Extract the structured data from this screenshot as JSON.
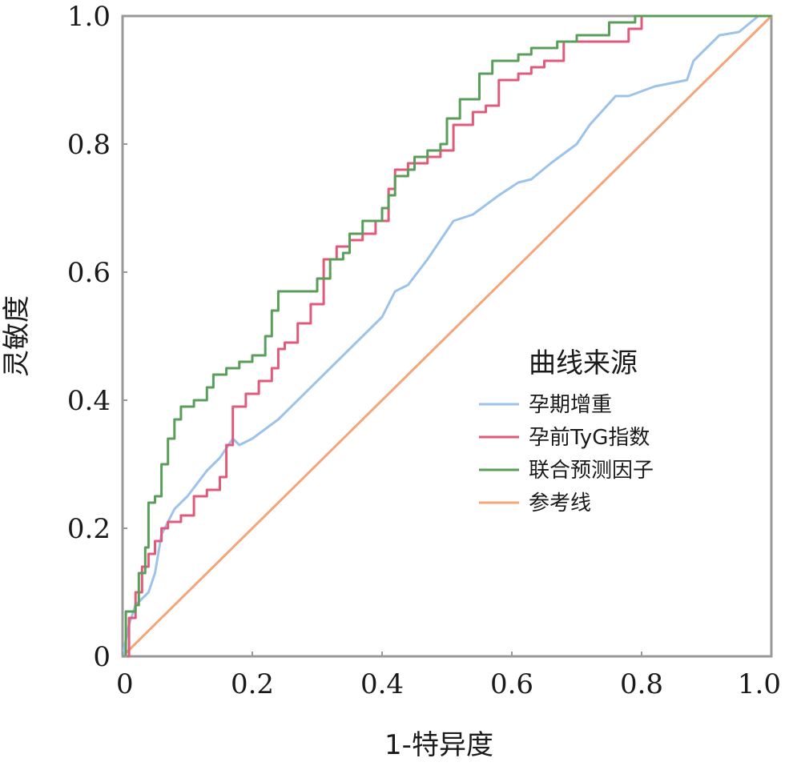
{
  "chart_data": {
    "type": "line",
    "title": "",
    "xlabel": "1-特异度",
    "ylabel": "灵敏度",
    "xlim": [
      0,
      1
    ],
    "ylim": [
      0,
      1
    ],
    "x_ticks": [
      "0",
      "0.2",
      "0.4",
      "0.6",
      "0.8",
      "1.0"
    ],
    "y_ticks": [
      "0",
      "0.2",
      "0.4",
      "0.6",
      "0.8",
      "1.0"
    ],
    "grid": false,
    "legend": {
      "title": "曲线来源",
      "placement": "right-center"
    },
    "series": [
      {
        "name": "孕期增重",
        "color": "#9dc3ea",
        "step": false,
        "points": [
          [
            0,
            0
          ],
          [
            0.01,
            0.05
          ],
          [
            0.02,
            0.08
          ],
          [
            0.03,
            0.09
          ],
          [
            0.04,
            0.1
          ],
          [
            0.05,
            0.13
          ],
          [
            0.06,
            0.19
          ],
          [
            0.08,
            0.23
          ],
          [
            0.1,
            0.25
          ],
          [
            0.13,
            0.29
          ],
          [
            0.15,
            0.31
          ],
          [
            0.17,
            0.34
          ],
          [
            0.18,
            0.33
          ],
          [
            0.2,
            0.34
          ],
          [
            0.24,
            0.37
          ],
          [
            0.28,
            0.41
          ],
          [
            0.32,
            0.45
          ],
          [
            0.35,
            0.48
          ],
          [
            0.4,
            0.53
          ],
          [
            0.42,
            0.57
          ],
          [
            0.44,
            0.58
          ],
          [
            0.47,
            0.62
          ],
          [
            0.51,
            0.68
          ],
          [
            0.54,
            0.69
          ],
          [
            0.58,
            0.72
          ],
          [
            0.61,
            0.74
          ],
          [
            0.63,
            0.745
          ],
          [
            0.66,
            0.77
          ],
          [
            0.7,
            0.8
          ],
          [
            0.72,
            0.83
          ],
          [
            0.76,
            0.875
          ],
          [
            0.78,
            0.875
          ],
          [
            0.82,
            0.89
          ],
          [
            0.87,
            0.9
          ],
          [
            0.88,
            0.93
          ],
          [
            0.9,
            0.95
          ],
          [
            0.92,
            0.97
          ],
          [
            0.95,
            0.975
          ],
          [
            0.98,
            1.0
          ],
          [
            1.0,
            1.0
          ]
        ]
      },
      {
        "name": "孕前TyG指数",
        "color": "#e05a7a",
        "step": true,
        "points": [
          [
            0,
            0
          ],
          [
            0.01,
            0.06
          ],
          [
            0.02,
            0.1
          ],
          [
            0.03,
            0.14
          ],
          [
            0.04,
            0.16
          ],
          [
            0.05,
            0.18
          ],
          [
            0.06,
            0.2
          ],
          [
            0.07,
            0.21
          ],
          [
            0.09,
            0.22
          ],
          [
            0.11,
            0.25
          ],
          [
            0.13,
            0.26
          ],
          [
            0.15,
            0.28
          ],
          [
            0.16,
            0.33
          ],
          [
            0.17,
            0.39
          ],
          [
            0.19,
            0.41
          ],
          [
            0.21,
            0.43
          ],
          [
            0.23,
            0.45
          ],
          [
            0.24,
            0.48
          ],
          [
            0.25,
            0.49
          ],
          [
            0.27,
            0.52
          ],
          [
            0.29,
            0.55
          ],
          [
            0.31,
            0.62
          ],
          [
            0.33,
            0.64
          ],
          [
            0.35,
            0.65
          ],
          [
            0.37,
            0.66
          ],
          [
            0.39,
            0.68
          ],
          [
            0.41,
            0.73
          ],
          [
            0.42,
            0.76
          ],
          [
            0.44,
            0.77
          ],
          [
            0.47,
            0.78
          ],
          [
            0.49,
            0.79
          ],
          [
            0.51,
            0.83
          ],
          [
            0.54,
            0.85
          ],
          [
            0.56,
            0.86
          ],
          [
            0.58,
            0.9
          ],
          [
            0.61,
            0.91
          ],
          [
            0.63,
            0.92
          ],
          [
            0.65,
            0.93
          ],
          [
            0.68,
            0.96
          ],
          [
            0.74,
            0.96
          ],
          [
            0.78,
            0.98
          ],
          [
            0.8,
            1.0
          ],
          [
            0.85,
            1.0
          ],
          [
            1.0,
            1.0
          ]
        ]
      },
      {
        "name": "联合预测因子",
        "color": "#5a9e5a",
        "step": true,
        "points": [
          [
            0,
            0
          ],
          [
            0.005,
            0.07
          ],
          [
            0.02,
            0.08
          ],
          [
            0.025,
            0.13
          ],
          [
            0.035,
            0.17
          ],
          [
            0.04,
            0.24
          ],
          [
            0.05,
            0.25
          ],
          [
            0.06,
            0.3
          ],
          [
            0.07,
            0.34
          ],
          [
            0.08,
            0.37
          ],
          [
            0.09,
            0.39
          ],
          [
            0.11,
            0.4
          ],
          [
            0.13,
            0.42
          ],
          [
            0.14,
            0.44
          ],
          [
            0.16,
            0.45
          ],
          [
            0.18,
            0.46
          ],
          [
            0.2,
            0.47
          ],
          [
            0.22,
            0.5
          ],
          [
            0.23,
            0.54
          ],
          [
            0.24,
            0.57
          ],
          [
            0.26,
            0.57
          ],
          [
            0.28,
            0.57
          ],
          [
            0.3,
            0.59
          ],
          [
            0.32,
            0.62
          ],
          [
            0.34,
            0.63
          ],
          [
            0.35,
            0.66
          ],
          [
            0.37,
            0.68
          ],
          [
            0.4,
            0.7
          ],
          [
            0.41,
            0.72
          ],
          [
            0.42,
            0.75
          ],
          [
            0.44,
            0.76
          ],
          [
            0.45,
            0.78
          ],
          [
            0.47,
            0.79
          ],
          [
            0.49,
            0.8
          ],
          [
            0.5,
            0.84
          ],
          [
            0.52,
            0.87
          ],
          [
            0.55,
            0.91
          ],
          [
            0.57,
            0.93
          ],
          [
            0.61,
            0.94
          ],
          [
            0.63,
            0.95
          ],
          [
            0.67,
            0.96
          ],
          [
            0.7,
            0.97
          ],
          [
            0.75,
            0.99
          ],
          [
            0.79,
            1.0
          ],
          [
            1.0,
            1.0
          ]
        ]
      },
      {
        "name": "参考线",
        "color": "#f4a57a",
        "step": false,
        "points": [
          [
            0,
            0
          ],
          [
            1,
            1
          ]
        ]
      }
    ]
  }
}
